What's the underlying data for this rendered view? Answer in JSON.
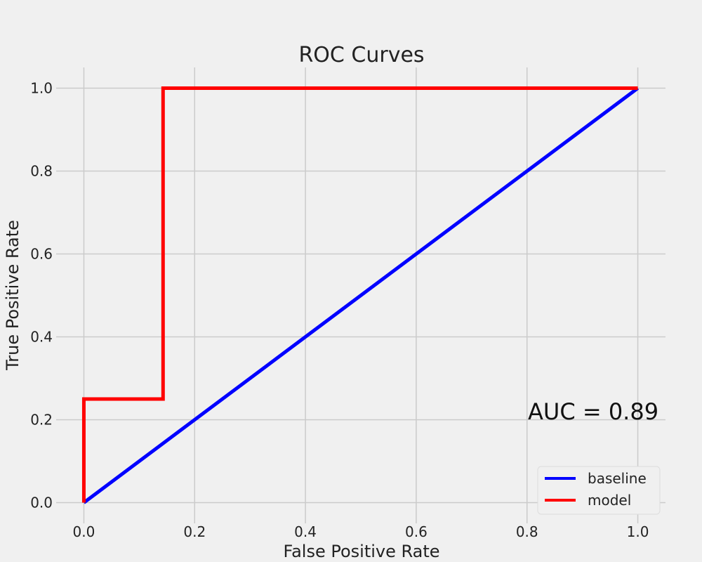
{
  "chart_data": {
    "type": "line",
    "title": "ROC Curves",
    "xlabel": "False Positive Rate",
    "ylabel": "True Positive Rate",
    "xlim": [
      -0.05,
      1.05
    ],
    "ylim": [
      -0.05,
      1.05
    ],
    "xticks": [
      0.0,
      0.2,
      0.4,
      0.6,
      0.8,
      1.0
    ],
    "yticks": [
      0.0,
      0.2,
      0.4,
      0.6,
      0.8,
      1.0
    ],
    "xtick_labels": [
      "0.0",
      "0.2",
      "0.4",
      "0.6",
      "0.8",
      "1.0"
    ],
    "ytick_labels": [
      "0.0",
      "0.2",
      "0.4",
      "0.6",
      "0.8",
      "1.0"
    ],
    "grid": true,
    "legend_position": "lower-right",
    "series": [
      {
        "name": "baseline",
        "color": "#0000ff",
        "x": [
          0.0,
          1.0
        ],
        "y": [
          0.0,
          1.0
        ]
      },
      {
        "name": "model",
        "color": "#ff0000",
        "x": [
          0.0,
          0.0,
          0.143,
          0.143,
          1.0
        ],
        "y": [
          0.0,
          0.25,
          0.25,
          1.0,
          1.0
        ]
      }
    ],
    "annotations": [
      {
        "text": "AUC = 0.89",
        "x": 0.8,
        "y": 0.2
      }
    ]
  }
}
